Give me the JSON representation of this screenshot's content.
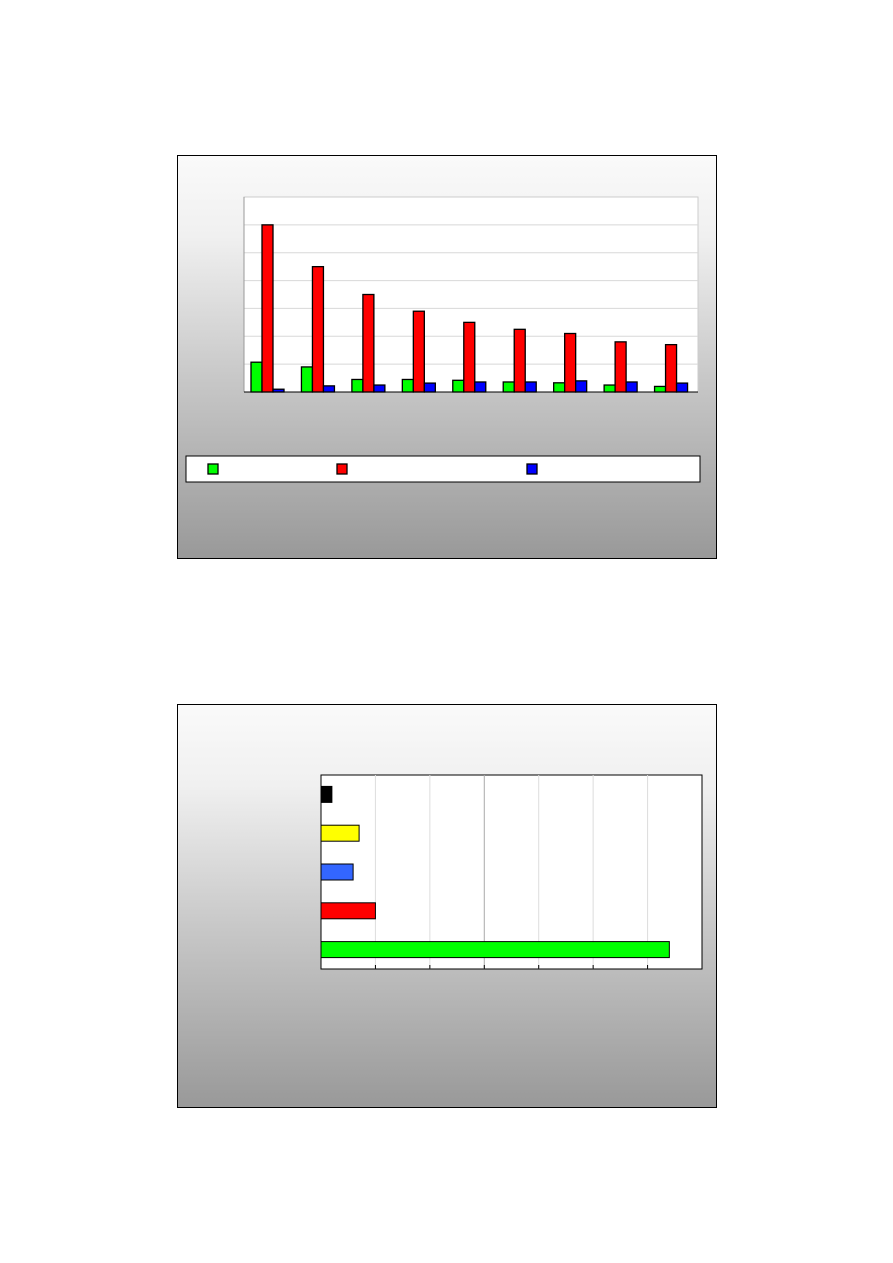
{
  "chart_data": [
    {
      "type": "bar",
      "orientation": "vertical",
      "title": "",
      "xlabel": "",
      "ylabel": "",
      "categories": [
        "",
        "",
        "",
        "",
        "",
        "",
        "",
        "",
        ""
      ],
      "ylim": [
        0,
        7
      ],
      "grid": true,
      "legend": "bottom",
      "series": [
        {
          "color": "#00ff00",
          "values": [
            1.07,
            0.9,
            0.45,
            0.45,
            0.42,
            0.36,
            0.33,
            0.25,
            0.2
          ]
        },
        {
          "color": "#ff0000",
          "values": [
            6.0,
            4.5,
            3.5,
            2.9,
            2.5,
            2.25,
            2.1,
            1.8,
            1.7
          ]
        },
        {
          "color": "#0000ff",
          "values": [
            0.1,
            0.22,
            0.25,
            0.32,
            0.36,
            0.36,
            0.4,
            0.36,
            0.32
          ]
        }
      ]
    },
    {
      "type": "bar",
      "orientation": "horizontal",
      "title": "",
      "xlabel": "",
      "ylabel": "",
      "categories": [
        "",
        "",
        "",
        "",
        ""
      ],
      "xlim": [
        0,
        7
      ],
      "grid": true,
      "values": [
        0.2,
        0.7,
        0.59,
        1.0,
        6.4
      ],
      "colors": [
        "#000000",
        "#ffff00",
        "#3366ff",
        "#ff0000",
        "#00ff00"
      ]
    }
  ]
}
